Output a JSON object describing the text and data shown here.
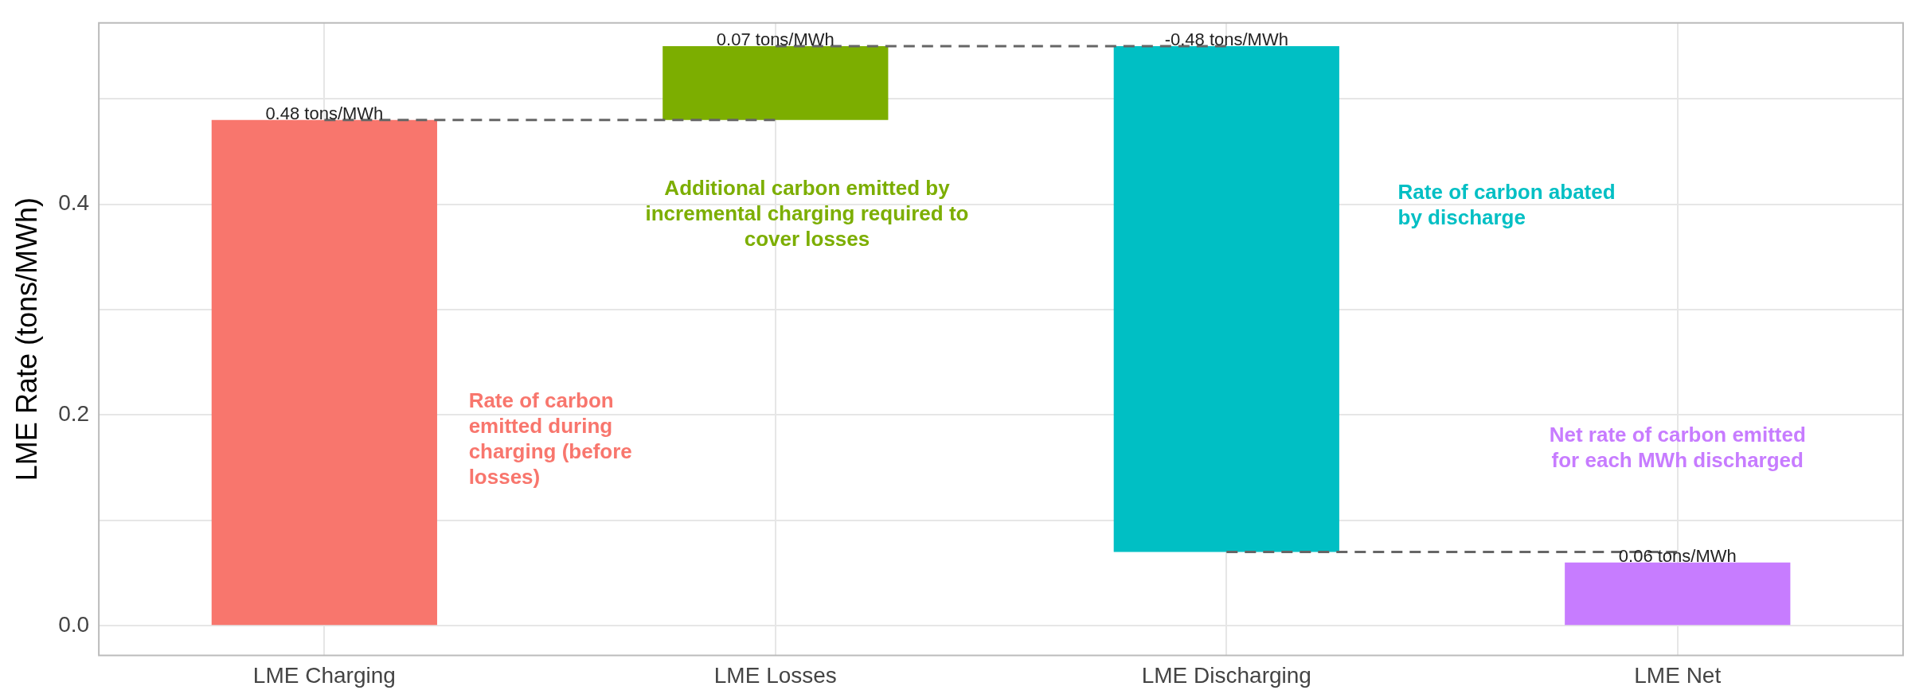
{
  "chart_data": {
    "type": "bar",
    "ylabel": "LME Rate (tons/MWh)",
    "categories": [
      "LME Charging",
      "LME Losses",
      "LME Discharging",
      "LME Net"
    ],
    "values": [
      0.48,
      0.07,
      -0.48,
      0.06
    ],
    "base": [
      0,
      0.48,
      0.55,
      0
    ],
    "colors": [
      "#f8766d",
      "#7cae00",
      "#00bfc4",
      "#c77cff"
    ],
    "value_labels": [
      "0.48 tons/MWh",
      "0.07 tons/MWh",
      "-0.48 tons/MWh",
      "0.06 tons/MWh"
    ],
    "ylim": [
      -0.028,
      0.572
    ],
    "yticks": [
      {
        "value": 0,
        "label": "0.0"
      },
      {
        "value": 0.1,
        "label": null
      },
      {
        "value": 0.2,
        "label": "0.2"
      },
      {
        "value": 0.3,
        "label": null
      },
      {
        "value": 0.4,
        "label": "0.4"
      },
      {
        "value": 0.5,
        "label": null
      }
    ],
    "grid": true,
    "legend": false,
    "annotations": [
      "Rate of carbon emitted during charging (before losses)",
      "Additional carbon emitted by incremental charging required to cover losses",
      "Rate of carbon abated by discharge",
      "Net rate of carbon emitted for each MWh discharged"
    ]
  }
}
